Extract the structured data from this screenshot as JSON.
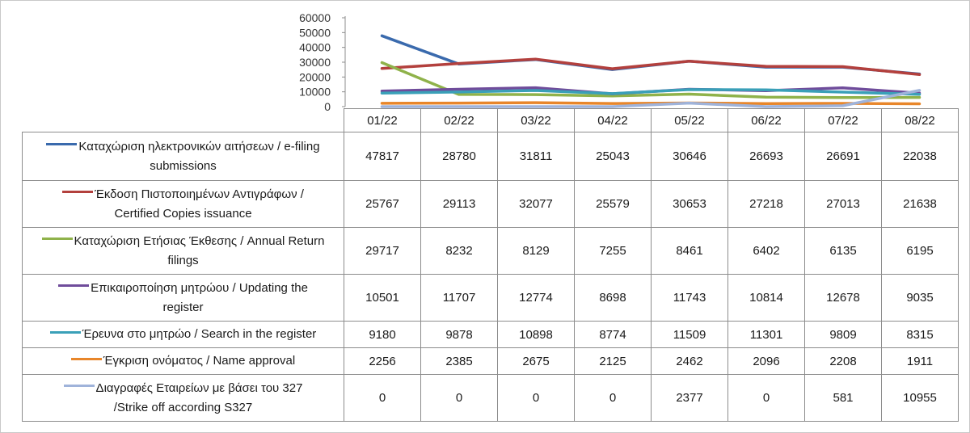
{
  "chart_data": {
    "type": "line",
    "categories": [
      "01/22",
      "02/22",
      "03/22",
      "04/22",
      "05/22",
      "06/22",
      "07/22",
      "08/22"
    ],
    "ylim": [
      0,
      60000
    ],
    "yticks": [
      "60000",
      "50000",
      "40000",
      "30000",
      "20000",
      "10000",
      "0"
    ],
    "legend": "table",
    "grid": false,
    "series": [
      {
        "name": "Καταχώριση ηλεκτρονικών αιτήσεων / e-filing submissions",
        "color": "#3a6aad",
        "values": [
          47817,
          28780,
          31811,
          25043,
          30646,
          26693,
          26691,
          22038
        ]
      },
      {
        "name": "Έκδοση Πιστοποιημένων Αντιγράφων / Certified Copies issuance",
        "color": "#b3403d",
        "values": [
          25767,
          29113,
          32077,
          25579,
          30653,
          27218,
          27013,
          21638
        ]
      },
      {
        "name": "Καταχώριση Ετήσιας Έκθεσης / Annual Return filings",
        "color": "#8fb24a",
        "values": [
          29717,
          8232,
          8129,
          7255,
          8461,
          6402,
          6135,
          6195
        ]
      },
      {
        "name": "Επικαιροποίηση μητρώου / Updating the register",
        "color": "#6f4c9b",
        "values": [
          10501,
          11707,
          12774,
          8698,
          11743,
          10814,
          12678,
          9035
        ]
      },
      {
        "name": "Έρευνα στο μητρώο / Search in the register",
        "color": "#3aa0b8",
        "values": [
          9180,
          9878,
          10898,
          8774,
          11509,
          11301,
          9809,
          8315
        ]
      },
      {
        "name": "Έγκριση ονόματος / Name approval",
        "color": "#e8862a",
        "values": [
          2256,
          2385,
          2675,
          2125,
          2462,
          2096,
          2208,
          1911
        ]
      },
      {
        "name": "Διαγραφές Εταιρείων με βάσει του 327 /Strike off according S327",
        "color": "#9fb3da",
        "values": [
          0,
          0,
          0,
          0,
          2377,
          0,
          581,
          10955
        ]
      }
    ],
    "row_labels": [
      [
        "Καταχώριση ηλεκτρονικών αιτήσεων / e-filing",
        "submissions"
      ],
      [
        "Έκδοση Πιστοποιημένων Αντιγράφων /",
        "Certified Copies issuance"
      ],
      [
        "Καταχώριση Ετήσιας Έκθεσης / Annual Return",
        "filings"
      ],
      [
        "Επικαιροποίηση μητρώου / Updating the",
        "register"
      ],
      [
        "Έρευνα στο μητρώο / Search in the register"
      ],
      [
        "Έγκριση ονόματος / Name approval"
      ],
      [
        "Διαγραφές Εταιρείων  με  βάσει του 327",
        "/Strike off according S327"
      ]
    ]
  }
}
